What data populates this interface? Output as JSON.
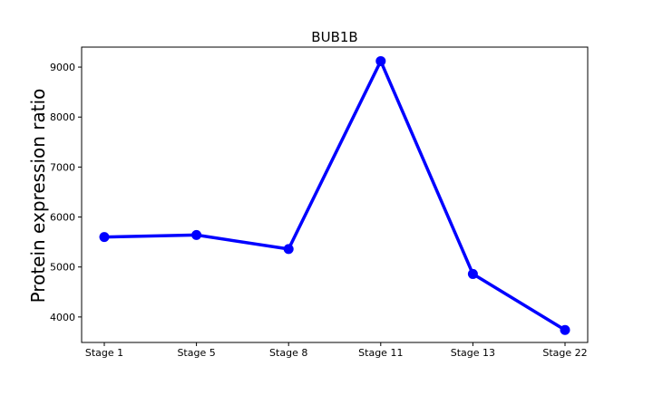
{
  "chart_data": {
    "type": "line",
    "title": "BUB1B",
    "xlabel": "",
    "ylabel": "Protein expression ratio",
    "categories": [
      "Stage 1",
      "Stage 5",
      "Stage 8",
      "Stage 11",
      "Stage 13",
      "Stage 22"
    ],
    "series": [
      {
        "values": [
          5600,
          5640,
          5360,
          9120,
          4860,
          3740
        ],
        "color": "#0000ff"
      }
    ],
    "yticks": [
      4000,
      5000,
      6000,
      7000,
      8000,
      9000
    ],
    "ytick_labels": [
      "4000",
      "5000",
      "6000",
      "7000",
      "8000",
      "9000"
    ],
    "ylim": [
      3490,
      9400
    ],
    "grid": false,
    "legend": "none"
  }
}
